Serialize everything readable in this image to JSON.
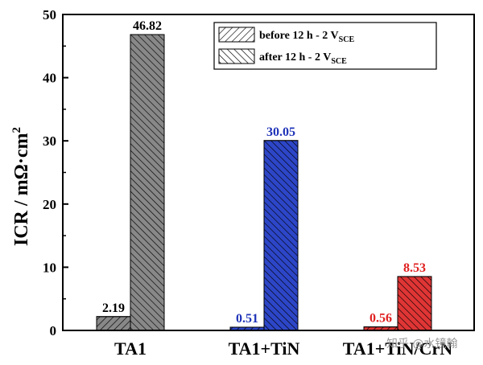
{
  "chart_data": {
    "type": "bar",
    "categories": [
      "TA1",
      "TA1+TiN",
      "TA1+TiN/CrN"
    ],
    "series": [
      {
        "name": "before 12 h - 2 V",
        "name_sub": "SCE",
        "values": [
          2.19,
          0.51,
          0.56
        ],
        "value_labels": [
          "2.19",
          "0.51",
          "0.56"
        ]
      },
      {
        "name": "after 12 h - 2 V",
        "name_sub": "SCE",
        "values": [
          46.82,
          30.05,
          8.53
        ],
        "value_labels": [
          "46.82",
          "30.05",
          "8.53"
        ]
      }
    ],
    "category_colors": [
      "#888888",
      "#2d46c8",
      "#e03535"
    ],
    "label_colors": [
      "#000000",
      "#1f33b8",
      "#e02020"
    ],
    "ylabel": "ICR / mΩ·cm",
    "ylabel_sup": "2",
    "xlabel": "",
    "ylim": [
      0,
      50
    ],
    "yticks": [
      0,
      10,
      20,
      30,
      40,
      50
    ],
    "legend_position": "top-right",
    "grid": false
  },
  "watermark": "知乎 @水镜翰"
}
